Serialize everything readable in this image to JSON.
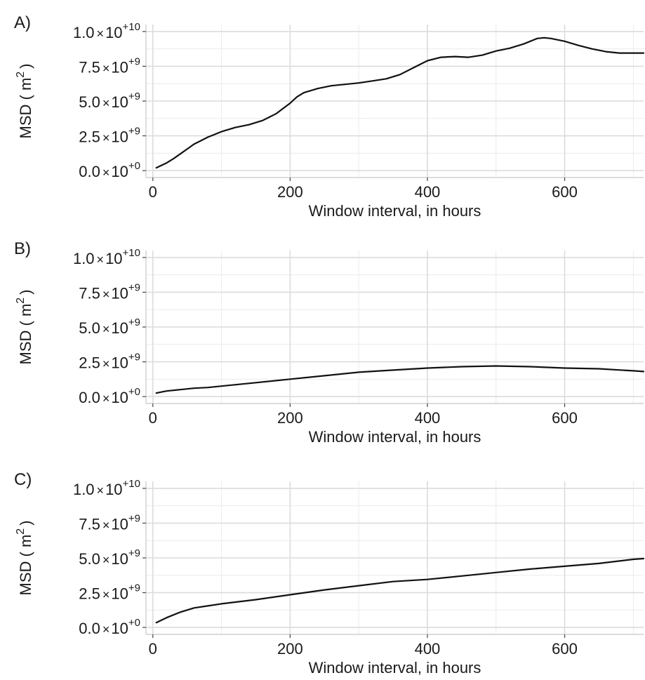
{
  "chart_data": [
    {
      "panel_label": "A)",
      "type": "line",
      "xlabel": "Window interval, in hours",
      "ylabel": "MSD ( m",
      "ylabel_sup": "2",
      "ylabel_close": ")",
      "xlim": [
        -10,
        715
      ],
      "ylim": [
        -500000000.0,
        10500000000.0
      ],
      "x_ticks": [
        0,
        200,
        400,
        600
      ],
      "x_tick_labels": [
        "0",
        "200",
        "400",
        "600"
      ],
      "y_ticks": [
        0,
        2500000000.0,
        5000000000.0,
        7500000000.0,
        10000000000.0
      ],
      "y_tick_labels": [
        {
          "mantissa": "0.0",
          "times": "×",
          "base": "10",
          "exp": "+0"
        },
        {
          "mantissa": "2.5",
          "times": "×",
          "base": "10",
          "exp": "+9"
        },
        {
          "mantissa": "5.0",
          "times": "×",
          "base": "10",
          "exp": "+9"
        },
        {
          "mantissa": "7.5",
          "times": "×",
          "base": "10",
          "exp": "+9"
        },
        {
          "mantissa": "1.0",
          "times": "×",
          "base": "10",
          "exp": "+10"
        }
      ],
      "series": [
        {
          "x": [
            5,
            20,
            30,
            40,
            50,
            60,
            70,
            80,
            100,
            120,
            140,
            160,
            180,
            200,
            210,
            220,
            240,
            260,
            280,
            300,
            320,
            340,
            360,
            380,
            400,
            420,
            440,
            460,
            480,
            500,
            520,
            540,
            560,
            570,
            580,
            600,
            620,
            640,
            660,
            680,
            700,
            715
          ],
          "y": [
            200000000.0,
            550000000.0,
            850000000.0,
            1200000000.0,
            1550000000.0,
            1900000000.0,
            2150000000.0,
            2400000000.0,
            2800000000.0,
            3100000000.0,
            3300000000.0,
            3600000000.0,
            4100000000.0,
            4850000000.0,
            5300000000.0,
            5600000000.0,
            5900000000.0,
            6100000000.0,
            6200000000.0,
            6300000000.0,
            6450000000.0,
            6600000000.0,
            6900000000.0,
            7400000000.0,
            7900000000.0,
            8150000000.0,
            8200000000.0,
            8150000000.0,
            8300000000.0,
            8600000000.0,
            8800000000.0,
            9100000000.0,
            9500000000.0,
            9550000000.0,
            9500000000.0,
            9300000000.0,
            9000000000.0,
            8750000000.0,
            8550000000.0,
            8450000000.0,
            8450000000.0,
            8450000000.0
          ]
        }
      ]
    },
    {
      "panel_label": "B)",
      "type": "line",
      "xlabel": "Window interval, in hours",
      "ylabel": "MSD ( m",
      "ylabel_sup": "2",
      "ylabel_close": ")",
      "xlim": [
        -10,
        715
      ],
      "ylim": [
        -500000000.0,
        10500000000.0
      ],
      "x_ticks": [
        0,
        200,
        400,
        600
      ],
      "x_tick_labels": [
        "0",
        "200",
        "400",
        "600"
      ],
      "y_ticks": [
        0,
        2500000000.0,
        5000000000.0,
        7500000000.0,
        10000000000.0
      ],
      "y_tick_labels": [
        {
          "mantissa": "0.0",
          "times": "×",
          "base": "10",
          "exp": "+0"
        },
        {
          "mantissa": "2.5",
          "times": "×",
          "base": "10",
          "exp": "+9"
        },
        {
          "mantissa": "5.0",
          "times": "×",
          "base": "10",
          "exp": "+9"
        },
        {
          "mantissa": "7.5",
          "times": "×",
          "base": "10",
          "exp": "+9"
        },
        {
          "mantissa": "1.0",
          "times": "×",
          "base": "10",
          "exp": "+10"
        }
      ],
      "series": [
        {
          "x": [
            5,
            20,
            40,
            60,
            80,
            100,
            150,
            200,
            250,
            300,
            350,
            400,
            450,
            500,
            550,
            600,
            650,
            700,
            715
          ],
          "y": [
            250000000.0,
            400000000.0,
            500000000.0,
            600000000.0,
            650000000.0,
            750000000.0,
            1000000000.0,
            1250000000.0,
            1500000000.0,
            1750000000.0,
            1900000000.0,
            2050000000.0,
            2150000000.0,
            2200000000.0,
            2150000000.0,
            2050000000.0,
            2000000000.0,
            1850000000.0,
            1800000000.0
          ]
        }
      ]
    },
    {
      "panel_label": "C)",
      "type": "line",
      "xlabel": "Window interval, in hours",
      "ylabel": "MSD ( m",
      "ylabel_sup": "2",
      "ylabel_close": ")",
      "xlim": [
        -10,
        715
      ],
      "ylim": [
        -500000000.0,
        10500000000.0
      ],
      "x_ticks": [
        0,
        200,
        400,
        600
      ],
      "x_tick_labels": [
        "0",
        "200",
        "400",
        "600"
      ],
      "y_ticks": [
        0,
        2500000000.0,
        5000000000.0,
        7500000000.0,
        10000000000.0
      ],
      "y_tick_labels": [
        {
          "mantissa": "0.0",
          "times": "×",
          "base": "10",
          "exp": "+0"
        },
        {
          "mantissa": "2.5",
          "times": "×",
          "base": "10",
          "exp": "+9"
        },
        {
          "mantissa": "5.0",
          "times": "×",
          "base": "10",
          "exp": "+9"
        },
        {
          "mantissa": "7.5",
          "times": "×",
          "base": "10",
          "exp": "+9"
        },
        {
          "mantissa": "1.0",
          "times": "×",
          "base": "10",
          "exp": "+10"
        }
      ],
      "series": [
        {
          "x": [
            5,
            20,
            40,
            60,
            80,
            100,
            150,
            200,
            250,
            300,
            350,
            400,
            450,
            500,
            550,
            600,
            650,
            700,
            715
          ],
          "y": [
            350000000.0,
            700000000.0,
            1100000000.0,
            1400000000.0,
            1550000000.0,
            1700000000.0,
            2000000000.0,
            2350000000.0,
            2700000000.0,
            3000000000.0,
            3300000000.0,
            3450000000.0,
            3700000000.0,
            3950000000.0,
            4200000000.0,
            4400000000.0,
            4600000000.0,
            4900000000.0,
            4950000000.0
          ]
        }
      ]
    }
  ]
}
